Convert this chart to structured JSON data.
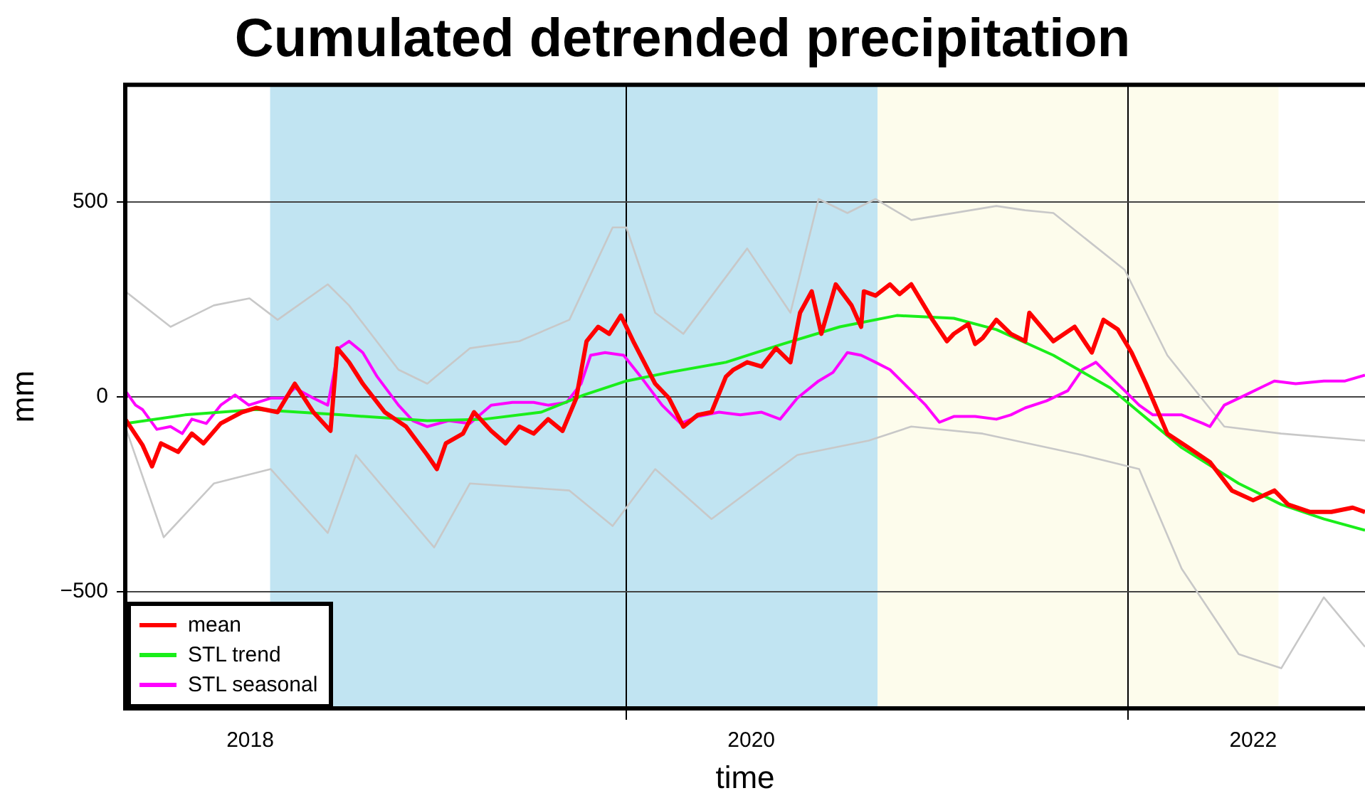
{
  "chart_data": {
    "type": "line",
    "title": "Cumulated detrended precipitation",
    "xlabel": "time",
    "ylabel": "mm",
    "xlim": [
      "2018-01-01",
      "2022-12-12"
    ],
    "xticks": [
      {
        "value": "2018-07-02",
        "label": "2018"
      },
      {
        "value": "2020-01-01",
        "label": null
      },
      {
        "value": "2020-07-01",
        "label": "2020"
      },
      {
        "value": "2022-01-01",
        "label": null
      },
      {
        "value": "2022-07-02",
        "label": "2022"
      }
    ],
    "ylim": [
      -800,
      800
    ],
    "yticks": [
      {
        "value": -500,
        "label": "−500"
      },
      0,
      500
    ],
    "grid": true,
    "legend": "bottom left",
    "marker": "none",
    "line_style": "solid",
    "bands": [
      {
        "axis": "x",
        "from": "2018-07-31",
        "to": "2021-01-01",
        "color": "#c1e4f2"
      },
      {
        "axis": "x",
        "from": "2021-01-01",
        "to": "2022-08-08",
        "color": "#fdfcec"
      }
    ],
    "series": [
      {
        "name": "mean",
        "color": "#ff0000",
        "x": [
          "2018-01-01",
          "2018-01-26",
          "2018-02-09",
          "2018-02-22",
          "2018-03-19",
          "2018-04-08",
          "2018-04-25",
          "2018-05-20",
          "2018-06-20",
          "2018-07-11",
          "2018-08-11",
          "2018-09-05",
          "2018-10-02",
          "2018-10-27",
          "2018-11-06",
          "2018-11-23",
          "2018-12-13",
          "2019-01-14",
          "2019-02-14",
          "2019-03-17",
          "2019-03-31",
          "2019-04-13",
          "2019-05-08",
          "2019-05-24",
          "2019-06-18",
          "2019-07-09",
          "2019-07-29",
          "2019-08-19",
          "2019-09-09",
          "2019-09-30",
          "2019-10-20",
          "2019-11-04",
          "2019-11-21",
          "2019-12-07",
          "2019-12-24",
          "2020-01-11",
          "2020-02-12",
          "2020-03-03",
          "2020-03-24",
          "2020-04-14",
          "2020-05-04",
          "2020-05-25",
          "2020-06-05",
          "2020-06-25",
          "2020-07-16",
          "2020-08-06",
          "2020-08-27",
          "2020-09-10",
          "2020-09-27",
          "2020-10-11",
          "2020-11-01",
          "2020-11-24",
          "2020-12-08",
          "2020-12-12",
          "2020-12-29",
          "2021-01-19",
          "2021-02-02",
          "2021-02-19",
          "2021-03-22",
          "2021-04-12",
          "2021-04-22",
          "2021-05-13",
          "2021-05-23",
          "2021-06-03",
          "2021-06-23",
          "2021-07-14",
          "2021-08-04",
          "2021-08-10",
          "2021-09-14",
          "2021-10-15",
          "2021-11-09",
          "2021-11-26",
          "2021-12-17",
          "2022-01-06",
          "2022-01-27",
          "2022-02-27",
          "2022-03-30",
          "2022-04-30",
          "2022-06-01",
          "2022-07-02",
          "2022-08-02",
          "2022-08-22",
          "2022-09-23",
          "2022-10-24",
          "2022-11-24",
          "2022-12-12"
        ],
        "values": [
          -58,
          -124,
          -179,
          -120,
          -142,
          -95,
          -120,
          -69,
          -40,
          -29,
          -40,
          33,
          -40,
          -88,
          124,
          88,
          33,
          -40,
          -77,
          -150,
          -186,
          -120,
          -95,
          -40,
          -88,
          -120,
          -77,
          -95,
          -58,
          -88,
          -4,
          142,
          179,
          161,
          208,
          142,
          33,
          -4,
          -77,
          -47,
          -40,
          51,
          69,
          88,
          77,
          124,
          88,
          215,
          270,
          161,
          288,
          234,
          179,
          270,
          259,
          288,
          263,
          288,
          197,
          142,
          161,
          186,
          135,
          150,
          197,
          161,
          142,
          215,
          142,
          179,
          113,
          197,
          172,
          113,
          33,
          -95,
          -131,
          -168,
          -241,
          -266,
          -241,
          -277,
          -296,
          -296,
          -285,
          -296
        ]
      },
      {
        "name": "STL trend",
        "color": "#1aee1a",
        "x": [
          "2018-01-01",
          "2018-03-29",
          "2018-07-11",
          "2018-11-12",
          "2019-03-17",
          "2019-06-08",
          "2019-08-30",
          "2019-10-31",
          "2020-01-01",
          "2020-03-03",
          "2020-05-25",
          "2020-08-16",
          "2020-11-07",
          "2021-01-29",
          "2021-04-22",
          "2021-06-23",
          "2021-09-14",
          "2021-12-06",
          "2022-01-17",
          "2022-03-20",
          "2022-06-11",
          "2022-08-12",
          "2022-10-13",
          "2022-12-12"
        ],
        "values": [
          -69,
          -47,
          -33,
          -47,
          -62,
          -58,
          -40,
          4,
          40,
          62,
          88,
          135,
          179,
          208,
          201,
          172,
          106,
          22,
          -40,
          -131,
          -223,
          -277,
          -314,
          -343
        ]
      },
      {
        "name": "STL seasonal",
        "color": "#ff00ff",
        "x": [
          "2018-01-01",
          "2018-01-16",
          "2018-01-26",
          "2018-02-16",
          "2018-03-08",
          "2018-03-25",
          "2018-04-08",
          "2018-04-29",
          "2018-05-20",
          "2018-06-10",
          "2018-06-30",
          "2018-08-01",
          "2018-08-21",
          "2018-09-05",
          "2018-10-02",
          "2018-10-23",
          "2018-11-08",
          "2018-11-23",
          "2018-12-13",
          "2019-01-03",
          "2019-02-03",
          "2019-02-24",
          "2019-03-17",
          "2019-04-17",
          "2019-05-18",
          "2019-06-18",
          "2019-07-19",
          "2019-08-19",
          "2019-09-09",
          "2019-10-06",
          "2019-10-27",
          "2019-11-10",
          "2019-12-01",
          "2019-12-28",
          "2020-01-22",
          "2020-02-22",
          "2020-03-20",
          "2020-04-14",
          "2020-05-15",
          "2020-06-15",
          "2020-07-16",
          "2020-08-12",
          "2020-09-06",
          "2020-10-07",
          "2020-10-28",
          "2020-11-18",
          "2020-12-08",
          "2020-12-29",
          "2021-01-19",
          "2021-02-19",
          "2021-03-12",
          "2021-04-01",
          "2021-04-22",
          "2021-05-23",
          "2021-06-23",
          "2021-07-14",
          "2021-08-04",
          "2021-09-04",
          "2021-10-05",
          "2021-10-26",
          "2021-11-15",
          "2021-12-06",
          "2021-12-27",
          "2022-01-17",
          "2022-02-06",
          "2022-03-20",
          "2022-04-20",
          "2022-04-30",
          "2022-05-21",
          "2022-06-21",
          "2022-08-02",
          "2022-09-02",
          "2022-10-13",
          "2022-11-13",
          "2022-12-12"
        ],
        "values": [
          15,
          -22,
          -33,
          -84,
          -77,
          -95,
          -58,
          -69,
          -22,
          4,
          -22,
          -4,
          -4,
          22,
          -4,
          -22,
          124,
          142,
          113,
          51,
          -22,
          -62,
          -77,
          -62,
          -69,
          -22,
          -15,
          -15,
          -22,
          -15,
          33,
          106,
          113,
          106,
          51,
          -22,
          -69,
          -51,
          -40,
          -47,
          -40,
          -58,
          -4,
          40,
          62,
          113,
          106,
          88,
          69,
          15,
          -22,
          -66,
          -51,
          -51,
          -58,
          -47,
          -29,
          -11,
          15,
          69,
          88,
          51,
          15,
          -22,
          -47,
          -47,
          -69,
          -77,
          -22,
          4,
          40,
          33,
          40,
          40,
          55
        ]
      },
      {
        "color": "#c8c8c8",
        "x": [
          "2018-01-01",
          "2018-03-08",
          "2018-05-10",
          "2018-07-01",
          "2018-08-11",
          "2018-10-23",
          "2018-11-23",
          "2019-02-03",
          "2019-03-17",
          "2019-05-18",
          "2019-07-29",
          "2019-10-10",
          "2019-12-12",
          "2020-01-01",
          "2020-02-12",
          "2020-03-24",
          "2020-06-25",
          "2020-08-27",
          "2020-10-07",
          "2020-11-18",
          "2020-12-29",
          "2021-02-19",
          "2021-06-23",
          "2021-08-04",
          "2021-09-14",
          "2021-12-27",
          "2022-02-27",
          "2022-05-21",
          "2022-08-12",
          "2022-12-12"
        ],
        "values": [
          270,
          179,
          234,
          252,
          197,
          288,
          234,
          69,
          33,
          124,
          142,
          197,
          434,
          434,
          215,
          161,
          380,
          215,
          507,
          471,
          507,
          453,
          489,
          478,
          471,
          325,
          106,
          -77,
          -95,
          -113
        ]
      },
      {
        "color": "#c8c8c8",
        "x": [
          "2018-01-01",
          "2018-02-26",
          "2018-05-10",
          "2018-08-01",
          "2018-10-23",
          "2018-12-03",
          "2019-03-27",
          "2019-05-18",
          "2019-10-10",
          "2019-12-12",
          "2020-02-12",
          "2020-05-04",
          "2020-09-06",
          "2020-12-19",
          "2021-02-19",
          "2021-06-03",
          "2021-10-26",
          "2022-01-17",
          "2022-03-20",
          "2022-06-11",
          "2022-08-12",
          "2022-10-13",
          "2022-12-12"
        ],
        "values": [
          -77,
          -361,
          -223,
          -186,
          -350,
          -150,
          -387,
          -223,
          -241,
          -332,
          -186,
          -314,
          -150,
          -113,
          -77,
          -95,
          -150,
          -186,
          -442,
          -661,
          -697,
          -515,
          -642
        ]
      }
    ]
  }
}
